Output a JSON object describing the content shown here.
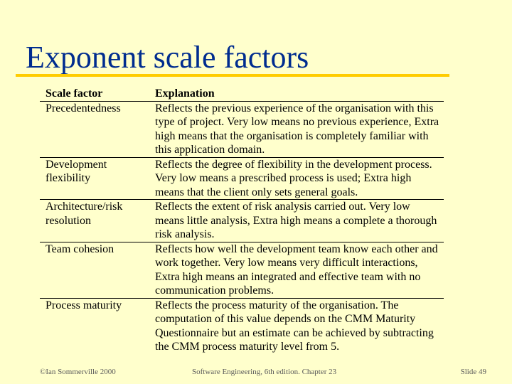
{
  "slide": {
    "title": "Exponent scale factors"
  },
  "table": {
    "headers": {
      "factor": "Scale factor",
      "explanation": "Explanation"
    },
    "rows": [
      {
        "factor": "Precedentedness",
        "explanation": "Reflects the previous experience of the organisation with this type of project. Very low means no previous experience, Extra high means that the organisation is completely familiar with this application domain."
      },
      {
        "factor": "Development flexibility",
        "explanation": "Reflects the degree of flexibility in the development process. Very low means a prescribed process is used; Extra high means that the client only sets general goals."
      },
      {
        "factor": "Architecture/risk resolution",
        "explanation": "Reflects the extent of risk analysis carried out. Very low means little analysis, Extra high means a complete a thorough risk analysis."
      },
      {
        "factor": "Team cohesion",
        "explanation": "Reflects how well the development team know each other and work together. Very low means very difficult interactions, Extra high means an integrated and effective team with no communication problems."
      },
      {
        "factor": "Process maturity",
        "explanation": "Reflects the process maturity of the organisation. The computation of this value depends on the CMM Maturity Questionnaire but an estimate can be achieved by subtracting the CMM process maturity level from 5."
      }
    ]
  },
  "footer": {
    "copyright": "©Ian Sommerville 2000",
    "book": "Software Engineering, 6th edition. Chapter 23",
    "slide_number": "Slide 49"
  }
}
